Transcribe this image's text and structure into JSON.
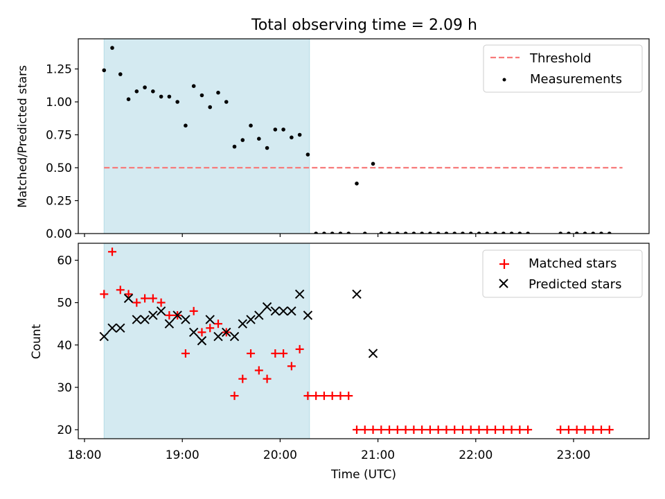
{
  "chart_data": [
    {
      "type": "scatter",
      "title": "Total observing time = 2.09 h",
      "xlabel": "",
      "ylabel": "Matched/Predicted stars",
      "ylim": [
        0,
        1.45
      ],
      "yticks": [
        "0.00",
        "0.25",
        "0.50",
        "0.75",
        "1.00",
        "1.25"
      ],
      "shaded_interval": [
        "18:12",
        "20:18"
      ],
      "shade_color": "#d4eaf1",
      "legend_position": "top-right",
      "threshold": {
        "name": "Threshold",
        "value": 0.5,
        "x_start": "18:12",
        "x_end": "23:30",
        "color": "#f77a7a",
        "style": "dashed"
      },
      "series": [
        {
          "name": "Measurements",
          "color": "#000000",
          "marker": "dot",
          "x": [
            "18:12",
            "18:17",
            "18:22",
            "18:27",
            "18:32",
            "18:37",
            "18:42",
            "18:47",
            "18:52",
            "18:57",
            "19:02",
            "19:07",
            "19:12",
            "19:17",
            "19:22",
            "19:27",
            "19:32",
            "19:37",
            "19:42",
            "19:47",
            "19:52",
            "19:57",
            "20:02",
            "20:07",
            "20:12",
            "20:17",
            "20:22",
            "20:27",
            "20:32",
            "20:37",
            "20:42",
            "20:47",
            "20:52",
            "20:57",
            "21:02",
            "21:07",
            "21:12",
            "21:17",
            "21:22",
            "21:27",
            "21:32",
            "21:37",
            "21:42",
            "21:47",
            "21:52",
            "21:57",
            "22:02",
            "22:07",
            "22:12",
            "22:17",
            "22:22",
            "22:27",
            "22:32",
            "22:52",
            "22:57",
            "23:02",
            "23:07",
            "23:12",
            "23:17",
            "23:22"
          ],
          "y": [
            1.24,
            1.41,
            1.21,
            1.02,
            1.08,
            1.11,
            1.08,
            1.04,
            1.04,
            1.0,
            0.82,
            1.12,
            1.05,
            0.96,
            1.07,
            1.0,
            0.66,
            0.71,
            0.82,
            0.72,
            0.65,
            0.79,
            0.79,
            0.73,
            0.75,
            0.6,
            0,
            0,
            0,
            0,
            0,
            0.38,
            0,
            0.53,
            0,
            0,
            0,
            0,
            0,
            0,
            0,
            0,
            0,
            0,
            0,
            0,
            0,
            0,
            0,
            0,
            0,
            0,
            0,
            0,
            0,
            0,
            0,
            0,
            0,
            0
          ]
        }
      ]
    },
    {
      "type": "scatter",
      "title": "",
      "xlabel": "Time (UTC)",
      "ylabel": "Count",
      "ylim": [
        18,
        64
      ],
      "yticks": [
        "20",
        "30",
        "40",
        "50",
        "60"
      ],
      "xticks": [
        "18:00",
        "19:00",
        "20:00",
        "21:00",
        "22:00",
        "23:00"
      ],
      "shaded_interval": [
        "18:12",
        "20:18"
      ],
      "shade_color": "#d4eaf1",
      "legend_position": "top-right",
      "series": [
        {
          "name": "Matched stars",
          "color": "#ff0000",
          "marker": "plus",
          "x": [
            "18:12",
            "18:17",
            "18:22",
            "18:27",
            "18:32",
            "18:37",
            "18:42",
            "18:47",
            "18:52",
            "18:57",
            "19:02",
            "19:07",
            "19:12",
            "19:17",
            "19:22",
            "19:27",
            "19:32",
            "19:37",
            "19:42",
            "19:47",
            "19:52",
            "19:57",
            "20:02",
            "20:07",
            "20:12",
            "20:17",
            "20:22",
            "20:27",
            "20:32",
            "20:37",
            "20:42",
            "20:47",
            "20:52",
            "20:57",
            "21:02",
            "21:07",
            "21:12",
            "21:17",
            "21:22",
            "21:27",
            "21:32",
            "21:37",
            "21:42",
            "21:47",
            "21:52",
            "21:57",
            "22:02",
            "22:07",
            "22:12",
            "22:17",
            "22:22",
            "22:27",
            "22:32",
            "22:52",
            "22:57",
            "23:02",
            "23:07",
            "23:12",
            "23:17",
            "23:22"
          ],
          "y": [
            52,
            62,
            53,
            52,
            50,
            51,
            51,
            50,
            47,
            47,
            38,
            48,
            43,
            44,
            45,
            43,
            28,
            32,
            38,
            34,
            32,
            38,
            38,
            35,
            39,
            28,
            28,
            28,
            28,
            28,
            28,
            20,
            20,
            20,
            20,
            20,
            20,
            20,
            20,
            20,
            20,
            20,
            20,
            20,
            20,
            20,
            20,
            20,
            20,
            20,
            20,
            20,
            20,
            20,
            20,
            20,
            20,
            20,
            20,
            20
          ]
        },
        {
          "name": "Predicted stars",
          "color": "#000000",
          "marker": "x",
          "x": [
            "18:12",
            "18:17",
            "18:22",
            "18:27",
            "18:32",
            "18:37",
            "18:42",
            "18:47",
            "18:52",
            "18:57",
            "19:02",
            "19:07",
            "19:12",
            "19:17",
            "19:22",
            "19:27",
            "19:32",
            "19:37",
            "19:42",
            "19:47",
            "19:52",
            "19:57",
            "20:02",
            "20:07",
            "20:12",
            "20:17",
            "20:47",
            "20:57"
          ],
          "y": [
            42,
            44,
            44,
            51,
            46,
            46,
            47,
            48,
            45,
            47,
            46,
            43,
            41,
            46,
            42,
            43,
            42,
            45,
            46,
            47,
            49,
            48,
            48,
            48,
            52,
            47,
            52,
            38
          ]
        }
      ]
    }
  ]
}
